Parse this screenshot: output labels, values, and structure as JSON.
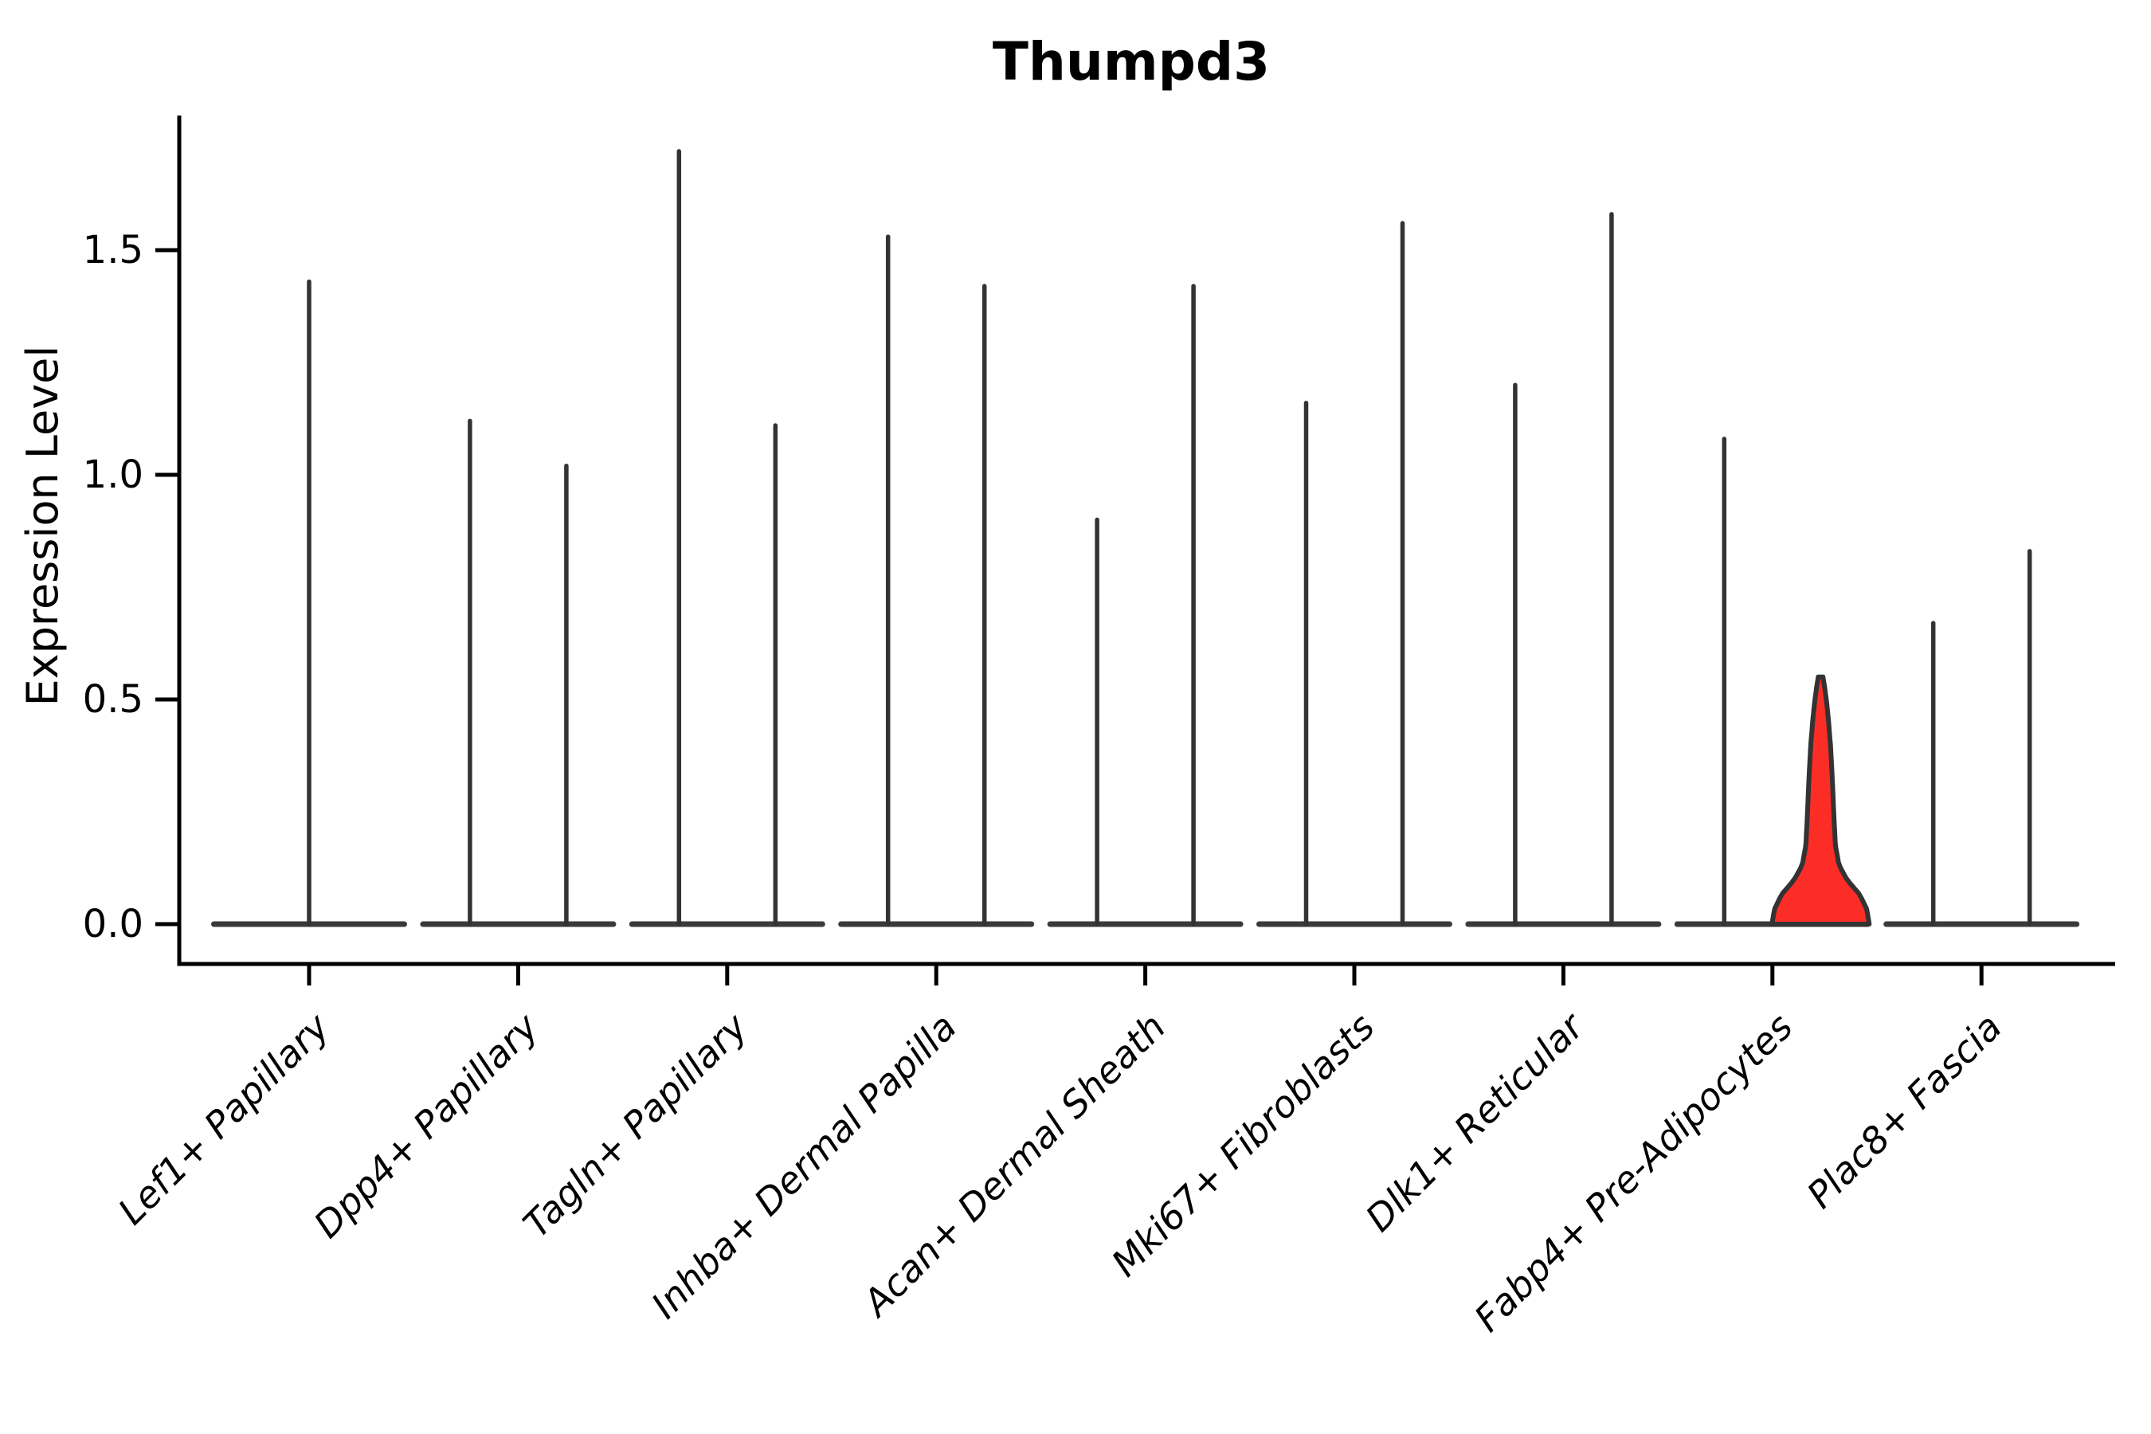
{
  "figure": {
    "background": "#ffffff"
  },
  "chart_data": {
    "type": "violin",
    "title": "Thumpd3",
    "ylabel": "Expression Level",
    "xlabel": "",
    "ylim": [
      -0.09,
      1.8
    ],
    "yticks": [
      0,
      0.5,
      1.0,
      1.5
    ],
    "ytick_labels": [
      "0.0",
      "0.5",
      "1.0",
      "1.5"
    ],
    "grid": false,
    "legend": "none",
    "x_label_rotation_deg": 45,
    "categories": [
      "Lef1+ Papillary",
      "Dpp4+ Papillary",
      "Tagln+ Papillary",
      "Inhba+ Dermal Papilla",
      "Acan+ Dermal Sheath",
      "Mki67+ Fibroblasts",
      "Dlk1+ Reticular",
      "Fabp4+ Pre-Adipocytes",
      "Plac8+ Fascia"
    ],
    "violins": [
      {
        "tails": [
          {
            "position": "center",
            "max": 1.43
          }
        ]
      },
      {
        "tails": [
          {
            "position": "left",
            "max": 1.12
          },
          {
            "position": "right",
            "max": 1.02
          }
        ]
      },
      {
        "tails": [
          {
            "position": "left",
            "max": 1.72
          },
          {
            "position": "right",
            "max": 1.11
          }
        ]
      },
      {
        "tails": [
          {
            "position": "left",
            "max": 1.53
          },
          {
            "position": "right",
            "max": 1.42
          }
        ]
      },
      {
        "tails": [
          {
            "position": "left",
            "max": 0.9
          },
          {
            "position": "right",
            "max": 1.42
          }
        ]
      },
      {
        "tails": [
          {
            "position": "left",
            "max": 1.16
          },
          {
            "position": "right",
            "max": 1.56
          }
        ]
      },
      {
        "tails": [
          {
            "position": "left",
            "max": 1.2
          },
          {
            "position": "right",
            "max": 1.58
          }
        ]
      },
      {
        "tails": [
          {
            "position": "left",
            "max": 1.08
          },
          {
            "position": "right",
            "max": 0.55,
            "style": "filled",
            "fill": "#fc2d26"
          }
        ]
      },
      {
        "tails": [
          {
            "position": "left",
            "max": 0.67
          },
          {
            "position": "right",
            "max": 0.83
          }
        ]
      }
    ],
    "colors": {
      "violin_line": "#333333",
      "baseline": "#3a3a3a",
      "highlight_fill": "#fc2d26",
      "axis": "#000000",
      "background": "#ffffff"
    }
  }
}
